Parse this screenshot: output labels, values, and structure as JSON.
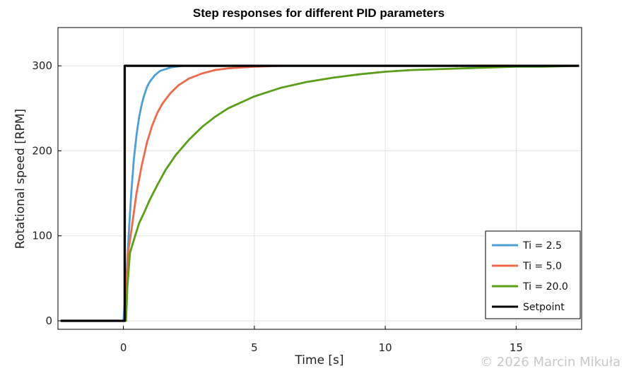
{
  "chart_data": {
    "type": "line",
    "title": "Step responses for different PID parameters",
    "xlabel": "Time [s]",
    "ylabel": "Rotational speed [RPM]",
    "xlim": [
      -2.5,
      17.5
    ],
    "ylim": [
      -10,
      345
    ],
    "xticks": [
      0,
      5,
      10,
      15
    ],
    "yticks": [
      0,
      100,
      200,
      300
    ],
    "grid": true,
    "legend_position": "bottom-right",
    "series": [
      {
        "name": "Ti = 2.5",
        "color": "#4d9fd6",
        "x": [
          -2.4,
          0.0,
          0.1,
          0.2,
          0.3,
          0.4,
          0.5,
          0.6,
          0.7,
          0.8,
          0.9,
          1.0,
          1.2,
          1.4,
          1.6,
          1.8,
          2.0,
          2.3,
          2.6,
          3.0,
          4.0,
          6.0,
          10.0,
          14.0,
          17.4
        ],
        "y": [
          0,
          0,
          40,
          100,
          150,
          190,
          218,
          240,
          255,
          266,
          275,
          281,
          289,
          294,
          296,
          298,
          299,
          300,
          300,
          300,
          300,
          300,
          300,
          300,
          300
        ]
      },
      {
        "name": "Ti = 5.0",
        "color": "#ee6a4c",
        "x": [
          -2.4,
          0.05,
          0.1,
          0.2,
          0.3,
          0.5,
          0.7,
          0.9,
          1.1,
          1.3,
          1.5,
          1.8,
          2.1,
          2.5,
          3.0,
          3.5,
          4.0,
          4.5,
          5.0,
          6.0,
          8.0,
          12.0,
          17.4
        ],
        "y": [
          0,
          0,
          40,
          85,
          105,
          150,
          183,
          210,
          230,
          245,
          256,
          268,
          277,
          285,
          291,
          295,
          297,
          298,
          299,
          300,
          300,
          300,
          300
        ]
      },
      {
        "name": "Ti = 20.0",
        "color": "#5a9e1a",
        "x": [
          -2.4,
          0.1,
          0.15,
          0.25,
          0.4,
          0.6,
          0.8,
          1.0,
          1.3,
          1.6,
          2.0,
          2.5,
          3.0,
          3.5,
          4.0,
          5.0,
          6.0,
          7.0,
          8.0,
          9.0,
          10.0,
          11.0,
          12.0,
          13.0,
          14.0,
          15.0,
          16.0,
          17.4
        ],
        "y": [
          0,
          0,
          40,
          80,
          95,
          115,
          128,
          142,
          160,
          177,
          195,
          213,
          228,
          240,
          250,
          264,
          274,
          281,
          286,
          290,
          293,
          295,
          296,
          297,
          298,
          299,
          299,
          300
        ]
      },
      {
        "name": "Setpoint",
        "color": "#000000",
        "x": [
          -2.4,
          0.05,
          0.05,
          17.4
        ],
        "y": [
          0,
          0,
          300,
          300
        ]
      }
    ]
  },
  "watermark": "© 2026 Marcin Mikuła"
}
